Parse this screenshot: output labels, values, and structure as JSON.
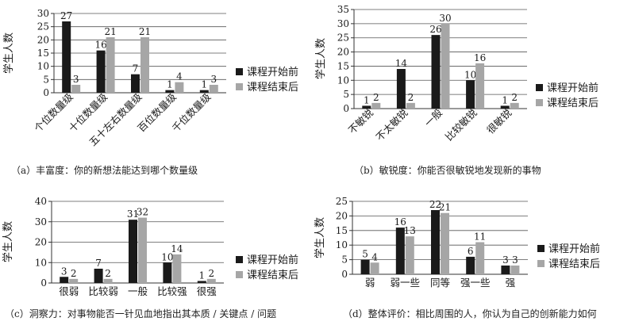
{
  "colors": {
    "before": "#1a1a1a",
    "after": "#a6a6a6",
    "axis": "#333333",
    "grid": "#555555"
  },
  "chart_data": [
    {
      "type": "bar",
      "caption": "（a）丰富度：你的新想法能达到哪个数量级",
      "ylabel": "学生人数",
      "ylim": [
        0,
        30
      ],
      "yticks": [
        0,
        5,
        10,
        15,
        20,
        25,
        30
      ],
      "categories": [
        "个位数量级",
        "十位数量级",
        "五十左右数量级",
        "百位数量级",
        "千位数量级"
      ],
      "series": [
        {
          "name": "课程开始前",
          "values": [
            27,
            16,
            7,
            1,
            1
          ]
        },
        {
          "name": "课程结束后",
          "values": [
            3,
            21,
            21,
            4,
            3
          ]
        }
      ],
      "legend": "right",
      "grid": true
    },
    {
      "type": "bar",
      "caption": "（b）敏锐度：你能否很敏锐地发现新的事物",
      "ylabel": "学生人数",
      "ylim": [
        0,
        35
      ],
      "yticks": [
        0,
        5,
        10,
        15,
        20,
        25,
        30,
        35
      ],
      "categories": [
        "不敏锐",
        "不太敏锐",
        "一般",
        "比较敏锐",
        "很敏锐"
      ],
      "series": [
        {
          "name": "课程开始前",
          "values": [
            1,
            14,
            26,
            10,
            1
          ]
        },
        {
          "name": "课程结束后",
          "values": [
            2,
            2,
            30,
            16,
            2
          ]
        }
      ],
      "legend": "right",
      "grid": true
    },
    {
      "type": "bar",
      "caption": "（c）洞察力：对事物能否一针见血地指出其本质 / 关键点 / 问题",
      "ylabel": "学生人数",
      "ylim": [
        0,
        40
      ],
      "yticks": [
        0,
        10,
        20,
        30,
        40
      ],
      "categories": [
        "很弱",
        "比较弱",
        "一般",
        "比较强",
        "很强"
      ],
      "series": [
        {
          "name": "课程开始前",
          "values": [
            3,
            7,
            31,
            10,
            1
          ]
        },
        {
          "name": "课程结束后",
          "values": [
            2,
            2,
            32,
            14,
            2
          ]
        }
      ],
      "legend": "right",
      "grid": true
    },
    {
      "type": "bar",
      "caption": "（d）整体评价：相比周围的人，你认为自己的创新能力如何",
      "ylabel": "学生人数",
      "ylim": [
        0,
        25
      ],
      "yticks": [
        0,
        5,
        10,
        15,
        20,
        25
      ],
      "categories": [
        "弱",
        "弱一些",
        "同等",
        "强一些",
        "强"
      ],
      "series": [
        {
          "name": "课程开始前",
          "values": [
            5,
            16,
            22,
            6,
            3
          ]
        },
        {
          "name": "课程结束后",
          "values": [
            4,
            13,
            21,
            11,
            3
          ]
        }
      ],
      "legend": "right",
      "grid": true
    }
  ]
}
